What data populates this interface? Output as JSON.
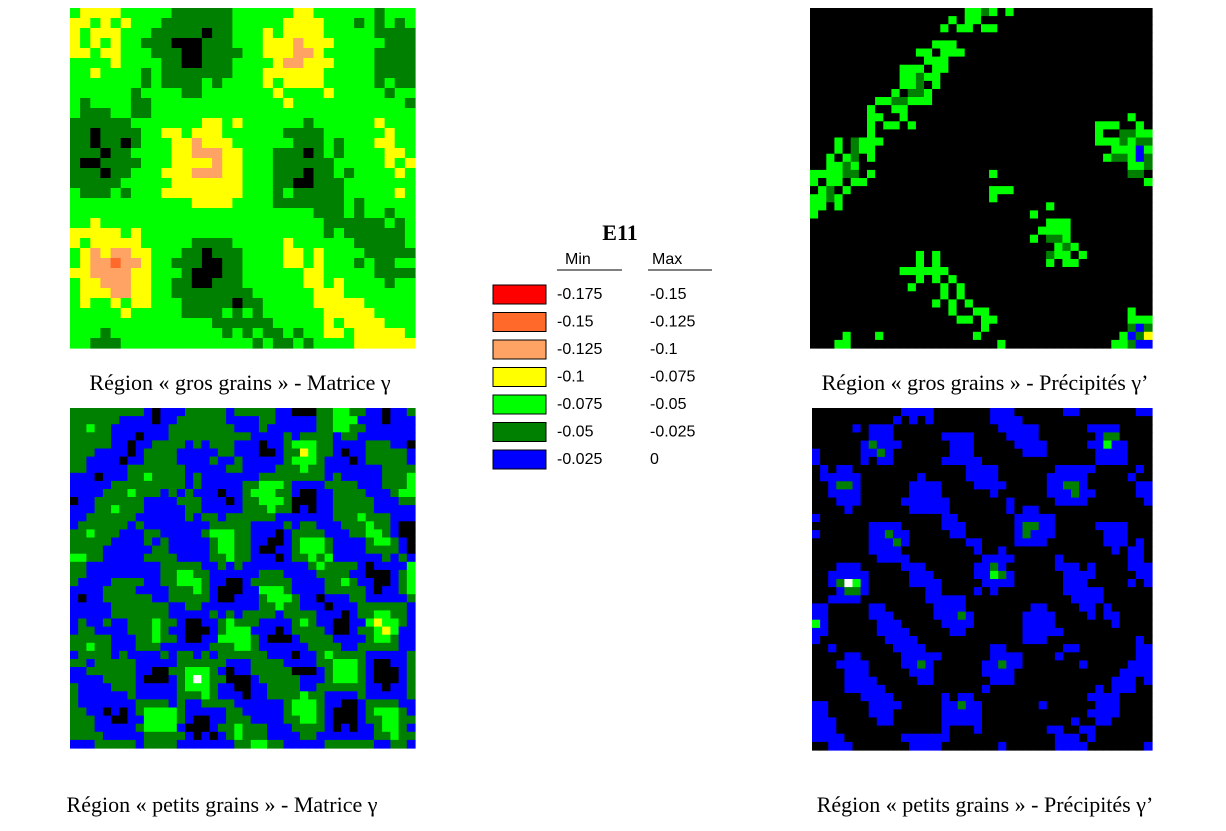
{
  "panels": [
    {
      "caption": "Région « gros grains » - Matrice γ"
    },
    {
      "caption": "Région « gros grains » - Précipités γ’"
    },
    {
      "caption": "Région « petits grains » - Matrice γ"
    },
    {
      "caption": "Région « petits grains » - Précipités γ’"
    }
  ],
  "legend": {
    "title": "E11",
    "headers": [
      "Min",
      "Max"
    ],
    "rows": [
      {
        "color": "#ff0000",
        "min": "-0.175",
        "max": "-0.15"
      },
      {
        "color": "#ff6a2a",
        "min": "-0.15",
        "max": "-0.125"
      },
      {
        "color": "#ffa364",
        "min": "-0.125",
        "max": "-0.1"
      },
      {
        "color": "#ffff00",
        "min": "-0.1",
        "max": "-0.075"
      },
      {
        "color": "#00ff00",
        "min": "-0.075",
        "max": "-0.05"
      },
      {
        "color": "#008000",
        "min": "-0.05",
        "max": "-0.025"
      },
      {
        "color": "#0000ff",
        "min": "-0.025",
        "max": "0"
      }
    ]
  }
}
